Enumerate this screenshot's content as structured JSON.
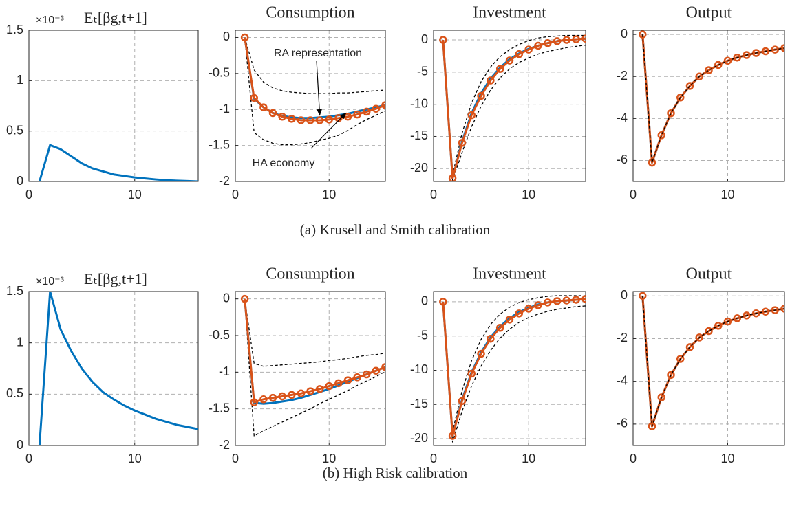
{
  "chart_data": [
    {
      "type": "line",
      "title": "Eₜ[βg,t+1]",
      "scale_label": "×10⁻³",
      "x": [
        1,
        2,
        3,
        4,
        5,
        6,
        7,
        8,
        9,
        10,
        11,
        12,
        13,
        14,
        15,
        16
      ],
      "xlim": [
        0,
        16
      ],
      "xticks": [
        0,
        10
      ],
      "ylim": [
        0,
        1.5
      ],
      "yticks": [
        0,
        0.5,
        1,
        1.5
      ],
      "grid": true,
      "series": [
        {
          "color": "#0072bd",
          "style": "solid",
          "values": [
            0,
            0.36,
            0.32,
            0.25,
            0.18,
            0.13,
            0.1,
            0.07,
            0.055,
            0.04,
            0.03,
            0.02,
            0.012,
            0.008,
            0.004,
            0
          ]
        }
      ]
    },
    {
      "type": "line",
      "title": "Consumption",
      "x": [
        1,
        2,
        3,
        4,
        5,
        6,
        7,
        8,
        9,
        10,
        11,
        12,
        13,
        14,
        15,
        16
      ],
      "xlim": [
        0,
        16
      ],
      "xticks": [
        0,
        10
      ],
      "ylim": [
        -2,
        0.1
      ],
      "yticks": [
        -2,
        -1.5,
        -1,
        -0.5,
        0
      ],
      "grid": true,
      "annotations": [
        "RA representation",
        "HA economy"
      ],
      "series": [
        {
          "color": "#000000",
          "style": "dashed",
          "values": [
            0,
            -0.45,
            -0.62,
            -0.7,
            -0.74,
            -0.76,
            -0.77,
            -0.78,
            -0.78,
            -0.78,
            -0.77,
            -0.77,
            -0.76,
            -0.75,
            -0.74,
            -0.73
          ]
        },
        {
          "color": "#000000",
          "style": "dashed",
          "values": [
            0,
            -1.32,
            -1.42,
            -1.47,
            -1.49,
            -1.49,
            -1.48,
            -1.46,
            -1.43,
            -1.4,
            -1.36,
            -1.29,
            -1.21,
            -1.14,
            -1.08,
            -1.02
          ]
        },
        {
          "color": "#0072bd",
          "style": "solid",
          "values": [
            0,
            -0.85,
            -0.97,
            -1.05,
            -1.09,
            -1.11,
            -1.12,
            -1.12,
            -1.11,
            -1.1,
            -1.08,
            -1.06,
            -1.03,
            -1,
            -0.97,
            -0.94
          ]
        },
        {
          "color": "#d95319",
          "style": "solid",
          "marker": "circle",
          "values": [
            0,
            -0.84,
            -0.97,
            -1.05,
            -1.1,
            -1.13,
            -1.15,
            -1.15,
            -1.15,
            -1.14,
            -1.12,
            -1.1,
            -1.07,
            -1.03,
            -0.99,
            -0.94
          ]
        }
      ]
    },
    {
      "type": "line",
      "title": "Investment",
      "x": [
        1,
        2,
        3,
        4,
        5,
        6,
        7,
        8,
        9,
        10,
        11,
        12,
        13,
        14,
        15,
        16
      ],
      "xlim": [
        0,
        16
      ],
      "xticks": [
        0,
        10
      ],
      "ylim": [
        -22,
        1.5
      ],
      "yticks": [
        -20,
        -15,
        -10,
        -5,
        0
      ],
      "grid": true,
      "series": [
        {
          "color": "#000000",
          "style": "dashed",
          "values": [
            0,
            -21,
            -14.5,
            -9.8,
            -6.5,
            -4.2,
            -2.6,
            -1.5,
            -0.7,
            -0.1,
            0.3,
            0.5,
            0.6,
            0.7,
            0.7,
            0.7
          ]
        },
        {
          "color": "#000000",
          "style": "dashed",
          "values": [
            0,
            -21.8,
            -17.5,
            -13.5,
            -10.3,
            -7.8,
            -5.9,
            -4.5,
            -3.5,
            -2.8,
            -2.2,
            -1.8,
            -1.5,
            -1.2,
            -1,
            -0.8
          ]
        },
        {
          "color": "#0072bd",
          "style": "solid",
          "values": [
            0,
            -21.5,
            -15.8,
            -11.4,
            -8.3,
            -6,
            -4.3,
            -3,
            -2.1,
            -1.4,
            -0.9,
            -0.5,
            -0.2,
            0,
            0.1,
            0.2
          ]
        },
        {
          "color": "#d95319",
          "style": "solid",
          "marker": "circle",
          "values": [
            0,
            -21.5,
            -16,
            -11.7,
            -8.7,
            -6.3,
            -4.5,
            -3.2,
            -2.2,
            -1.5,
            -0.9,
            -0.5,
            -0.2,
            0,
            0.1,
            0.2
          ]
        }
      ]
    },
    {
      "type": "line",
      "title": "Output",
      "x": [
        1,
        2,
        3,
        4,
        5,
        6,
        7,
        8,
        9,
        10,
        11,
        12,
        13,
        14,
        15,
        16
      ],
      "xlim": [
        0,
        16
      ],
      "xticks": [
        0,
        10
      ],
      "ylim": [
        -7,
        0.2
      ],
      "yticks": [
        -6,
        -4,
        -2,
        0
      ],
      "grid": true,
      "series": [
        {
          "color": "#0072bd",
          "style": "solid",
          "values": [
            0,
            -6.1,
            -4.8,
            -3.75,
            -3,
            -2.45,
            -2,
            -1.7,
            -1.45,
            -1.25,
            -1.1,
            -0.98,
            -0.88,
            -0.8,
            -0.72,
            -0.65
          ]
        },
        {
          "color": "#d95319",
          "style": "solid",
          "marker": "circle",
          "values": [
            0,
            -6.1,
            -4.8,
            -3.75,
            -3,
            -2.45,
            -2,
            -1.7,
            -1.45,
            -1.25,
            -1.1,
            -0.98,
            -0.88,
            -0.8,
            -0.72,
            -0.65
          ]
        },
        {
          "color": "#000000",
          "style": "dashed",
          "values": [
            0,
            -6.1,
            -4.8,
            -3.75,
            -3,
            -2.45,
            -2,
            -1.7,
            -1.45,
            -1.25,
            -1.1,
            -0.98,
            -0.88,
            -0.8,
            -0.72,
            -0.65
          ]
        }
      ]
    },
    {
      "type": "line",
      "title": "Eₜ[βg,t+1]",
      "scale_label": "×10⁻³",
      "x": [
        1,
        2,
        3,
        4,
        5,
        6,
        7,
        8,
        9,
        10,
        11,
        12,
        13,
        14,
        15,
        16
      ],
      "xlim": [
        0,
        16
      ],
      "xticks": [
        0,
        10
      ],
      "ylim": [
        0,
        1.5
      ],
      "yticks": [
        0,
        0.5,
        1,
        1.5
      ],
      "grid": true,
      "series": [
        {
          "color": "#0072bd",
          "style": "solid",
          "values": [
            0,
            1.5,
            1.13,
            0.92,
            0.75,
            0.62,
            0.52,
            0.45,
            0.39,
            0.34,
            0.3,
            0.26,
            0.23,
            0.2,
            0.18,
            0.16
          ]
        }
      ]
    },
    {
      "type": "line",
      "title": "Consumption",
      "x": [
        1,
        2,
        3,
        4,
        5,
        6,
        7,
        8,
        9,
        10,
        11,
        12,
        13,
        14,
        15,
        16
      ],
      "xlim": [
        0,
        16
      ],
      "xticks": [
        0,
        10
      ],
      "ylim": [
        -2,
        0.1
      ],
      "yticks": [
        -2,
        -1.5,
        -1,
        -0.5,
        0
      ],
      "grid": true,
      "series": [
        {
          "color": "#000000",
          "style": "dashed",
          "values": [
            0,
            -0.88,
            -0.92,
            -0.91,
            -0.9,
            -0.89,
            -0.88,
            -0.87,
            -0.86,
            -0.84,
            -0.83,
            -0.81,
            -0.79,
            -0.77,
            -0.76,
            -0.74
          ]
        },
        {
          "color": "#000000",
          "style": "dashed",
          "values": [
            0,
            -1.87,
            -1.8,
            -1.74,
            -1.68,
            -1.62,
            -1.56,
            -1.5,
            -1.43,
            -1.37,
            -1.31,
            -1.25,
            -1.18,
            -1.12,
            -1.06,
            -0.99
          ]
        },
        {
          "color": "#0072bd",
          "style": "solid",
          "values": [
            0,
            -1.42,
            -1.43,
            -1.42,
            -1.4,
            -1.38,
            -1.35,
            -1.31,
            -1.27,
            -1.23,
            -1.18,
            -1.13,
            -1.08,
            -1.03,
            -0.98,
            -0.93
          ]
        },
        {
          "color": "#d95319",
          "style": "solid",
          "marker": "circle",
          "values": [
            0,
            -1.41,
            -1.37,
            -1.35,
            -1.33,
            -1.31,
            -1.29,
            -1.26,
            -1.23,
            -1.19,
            -1.15,
            -1.11,
            -1.07,
            -1.03,
            -0.98,
            -0.93
          ]
        }
      ]
    },
    {
      "type": "line",
      "title": "Investment",
      "x": [
        1,
        2,
        3,
        4,
        5,
        6,
        7,
        8,
        9,
        10,
        11,
        12,
        13,
        14,
        15,
        16
      ],
      "xlim": [
        0,
        16
      ],
      "xticks": [
        0,
        10
      ],
      "ylim": [
        -21,
        1.5
      ],
      "yticks": [
        -20,
        -15,
        -10,
        -5,
        0
      ],
      "grid": true,
      "series": [
        {
          "color": "#000000",
          "style": "dashed",
          "values": [
            0,
            -19,
            -13,
            -8.6,
            -5.5,
            -3.3,
            -1.8,
            -0.8,
            -0.1,
            0.3,
            0.6,
            0.8,
            0.9,
            0.9,
            0.9,
            0.9
          ]
        },
        {
          "color": "#000000",
          "style": "dashed",
          "values": [
            0,
            -20.5,
            -16,
            -12.3,
            -9.4,
            -7.1,
            -5.3,
            -4,
            -3,
            -2.3,
            -1.8,
            -1.4,
            -1.1,
            -0.9,
            -0.7,
            -0.6
          ]
        },
        {
          "color": "#0072bd",
          "style": "solid",
          "values": [
            0,
            -19.6,
            -14.3,
            -10.3,
            -7.4,
            -5.2,
            -3.6,
            -2.4,
            -1.5,
            -0.9,
            -0.4,
            -0.1,
            0.1,
            0.2,
            0.3,
            0.4
          ]
        },
        {
          "color": "#d95319",
          "style": "solid",
          "marker": "circle",
          "values": [
            0,
            -19.6,
            -14.5,
            -10.5,
            -7.6,
            -5.4,
            -3.8,
            -2.6,
            -1.7,
            -1,
            -0.5,
            -0.1,
            0.1,
            0.2,
            0.3,
            0.4
          ]
        }
      ]
    },
    {
      "type": "line",
      "title": "Output",
      "x": [
        1,
        2,
        3,
        4,
        5,
        6,
        7,
        8,
        9,
        10,
        11,
        12,
        13,
        14,
        15,
        16
      ],
      "xlim": [
        0,
        16
      ],
      "xticks": [
        0,
        10
      ],
      "ylim": [
        -7,
        0.2
      ],
      "yticks": [
        -6,
        -4,
        -2,
        0
      ],
      "grid": true,
      "series": [
        {
          "color": "#0072bd",
          "style": "solid",
          "values": [
            0,
            -6.1,
            -4.75,
            -3.7,
            -2.95,
            -2.4,
            -1.95,
            -1.65,
            -1.4,
            -1.2,
            -1.05,
            -0.92,
            -0.82,
            -0.74,
            -0.67,
            -0.6
          ]
        },
        {
          "color": "#d95319",
          "style": "solid",
          "marker": "circle",
          "values": [
            0,
            -6.1,
            -4.75,
            -3.7,
            -2.95,
            -2.4,
            -1.95,
            -1.65,
            -1.4,
            -1.2,
            -1.05,
            -0.92,
            -0.82,
            -0.74,
            -0.67,
            -0.6
          ]
        },
        {
          "color": "#000000",
          "style": "dashed",
          "values": [
            0,
            -6.1,
            -4.75,
            -3.7,
            -2.95,
            -2.4,
            -1.95,
            -1.65,
            -1.4,
            -1.2,
            -1.05,
            -0.92,
            -0.82,
            -0.74,
            -0.67,
            -0.6
          ]
        }
      ]
    }
  ],
  "captions": [
    "(a)  Krusell and Smith calibration",
    "(b)  High Risk calibration"
  ]
}
